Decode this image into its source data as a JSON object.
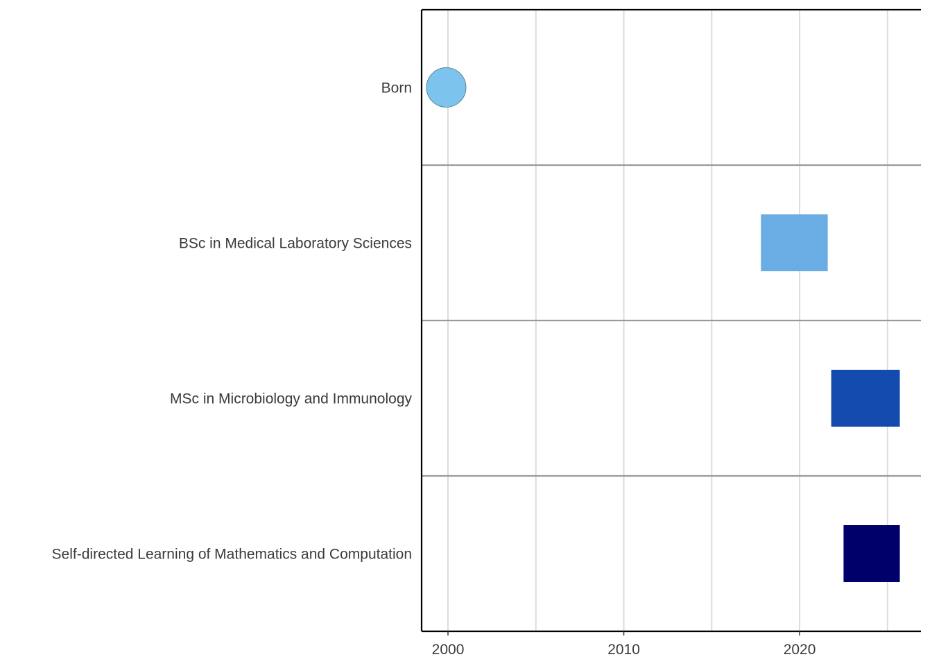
{
  "chart_data": {
    "type": "timeline",
    "title": "",
    "xlabel": "",
    "ylabel": "",
    "xlim": [
      1998.5,
      2026.9
    ],
    "x_ticks": [
      2000,
      2010,
      2020
    ],
    "x_tick_labels": [
      "2000",
      "2010",
      "2020"
    ],
    "x_minor_gridlines": [
      2005,
      2015,
      2025
    ],
    "grid": true,
    "legend": "none",
    "categories": [
      "Born",
      "BSc in Medical Laboratory Sciences",
      "MSc in Microbiology and Immunology",
      "Self-directed Learning of Mathematics and Computation"
    ],
    "events": [
      {
        "category": "Born",
        "shape": "point",
        "x": 1999.9,
        "color": "#7cc4ee"
      },
      {
        "category": "BSc in Medical Laboratory Sciences",
        "shape": "bar",
        "start": 2017.8,
        "end": 2021.6,
        "color": "#6aace4"
      },
      {
        "category": "MSc in Microbiology and Immunology",
        "shape": "bar",
        "start": 2021.8,
        "end": 2025.7,
        "color": "#124aae"
      },
      {
        "category": "Self-directed Learning of Mathematics and Computation",
        "shape": "bar",
        "start": 2022.5,
        "end": 2025.7,
        "color": "#00006a"
      }
    ]
  }
}
